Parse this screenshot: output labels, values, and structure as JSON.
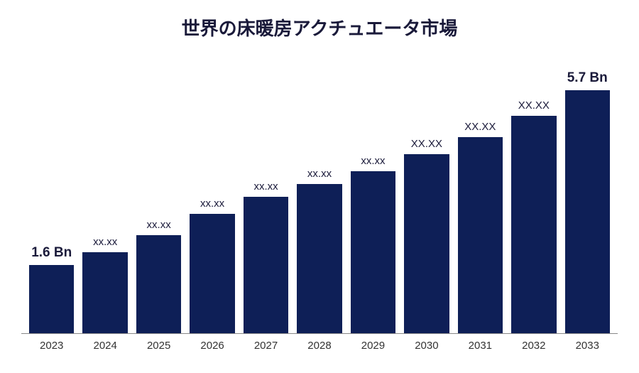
{
  "chart": {
    "type": "bar",
    "title": "世界の床暖房アクチュエータ市場",
    "title_fontsize": 26,
    "background_color": "#ffffff",
    "bar_color": "#0e1f57",
    "axis_line_color": "#888888",
    "categories": [
      "2023",
      "2024",
      "2025",
      "2026",
      "2027",
      "2028",
      "2029",
      "2030",
      "2031",
      "2032",
      "2033"
    ],
    "values": [
      1.6,
      1.9,
      2.3,
      2.8,
      3.2,
      3.5,
      3.8,
      4.2,
      4.6,
      5.1,
      5.7
    ],
    "value_labels": [
      "1.6 Bn",
      "xx.xx",
      "xx.xx",
      "xx.xx",
      "xx.xx",
      "xx.xx",
      "xx.xx",
      "XX.XX",
      "XX.XX",
      "XX.XX",
      "5.7 Bn"
    ],
    "label_bold_indices": [
      0,
      10
    ],
    "max_value_reference": 5.7,
    "max_bar_height_pct": 85,
    "label_fontsize_normal": 15,
    "label_fontsize_bold": 19,
    "xtick_fontsize": 15
  }
}
